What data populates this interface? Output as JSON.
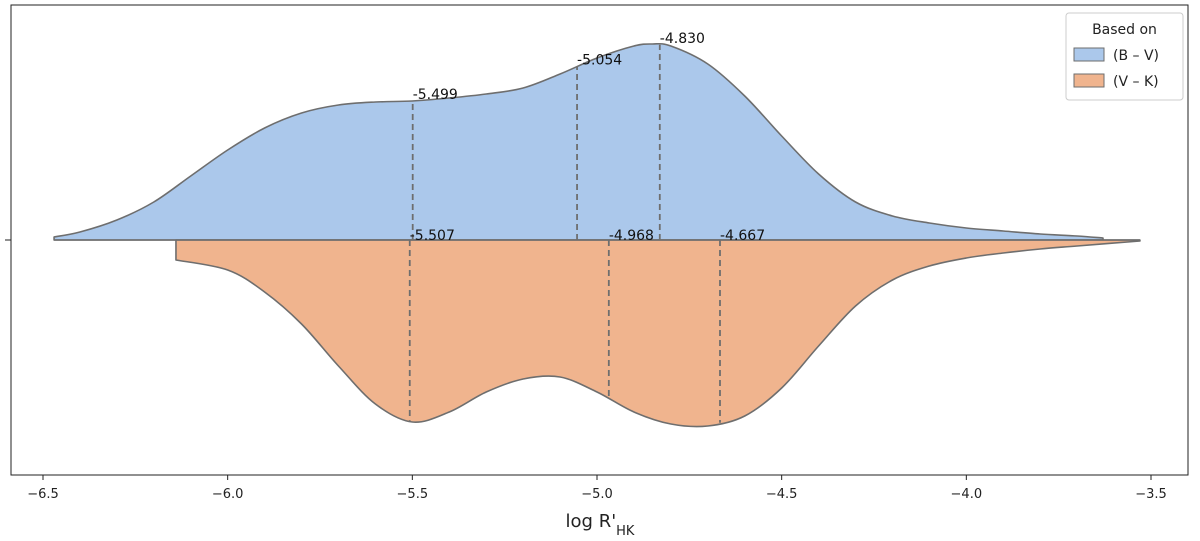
{
  "chart_data": {
    "type": "violin",
    "orientation": "horizontal",
    "split": true,
    "xlabel": "log R'HK",
    "xlim": [
      -6.55,
      -3.48
    ],
    "xticks": [
      -6.5,
      -6.0,
      -5.5,
      -5.0,
      -4.5,
      -4.0,
      -3.5
    ],
    "xtick_labels": [
      "−6.5",
      "−6.0",
      "−5.5",
      "−5.0",
      "−4.5",
      "−4.0",
      "−3.5"
    ],
    "legend": {
      "title": "Based on",
      "placement": "top-right"
    },
    "series": [
      {
        "name": "(B – V)",
        "color": "#abc8eb",
        "side": "upper",
        "range": [
          -6.47,
          -3.63
        ],
        "quartiles": [
          -5.499,
          -5.054,
          -4.83
        ],
        "quartile_labels": [
          "-5.499",
          "-5.054",
          "-4.830"
        ],
        "density_curve": [
          [
            -6.47,
            0.015
          ],
          [
            -6.4,
            0.04
          ],
          [
            -6.3,
            0.1
          ],
          [
            -6.2,
            0.19
          ],
          [
            -6.1,
            0.32
          ],
          [
            -6.0,
            0.45
          ],
          [
            -5.9,
            0.56
          ],
          [
            -5.8,
            0.635
          ],
          [
            -5.7,
            0.675
          ],
          [
            -5.6,
            0.69
          ],
          [
            -5.5,
            0.695
          ],
          [
            -5.4,
            0.71
          ],
          [
            -5.3,
            0.73
          ],
          [
            -5.2,
            0.76
          ],
          [
            -5.1,
            0.83
          ],
          [
            -5.0,
            0.91
          ],
          [
            -4.9,
            0.97
          ],
          [
            -4.85,
            0.98
          ],
          [
            -4.8,
            0.97
          ],
          [
            -4.7,
            0.88
          ],
          [
            -4.6,
            0.72
          ],
          [
            -4.5,
            0.52
          ],
          [
            -4.4,
            0.33
          ],
          [
            -4.3,
            0.19
          ],
          [
            -4.2,
            0.12
          ],
          [
            -4.1,
            0.085
          ],
          [
            -4.0,
            0.06
          ],
          [
            -3.9,
            0.045
          ],
          [
            -3.8,
            0.03
          ],
          [
            -3.7,
            0.02
          ],
          [
            -3.63,
            0.01
          ]
        ]
      },
      {
        "name": "(V – K)",
        "color": "#f0b48e",
        "side": "lower",
        "range": [
          -6.14,
          -3.53
        ],
        "quartiles": [
          -5.507,
          -4.968,
          -4.667
        ],
        "quartile_labels": [
          "-5.507",
          "-4.968",
          "-4.667"
        ],
        "density_curve": [
          [
            -6.14,
            0.1
          ],
          [
            -6.0,
            0.15
          ],
          [
            -5.9,
            0.26
          ],
          [
            -5.8,
            0.42
          ],
          [
            -5.7,
            0.63
          ],
          [
            -5.6,
            0.82
          ],
          [
            -5.5,
            0.91
          ],
          [
            -5.4,
            0.86
          ],
          [
            -5.3,
            0.76
          ],
          [
            -5.2,
            0.695
          ],
          [
            -5.1,
            0.685
          ],
          [
            -5.0,
            0.76
          ],
          [
            -4.9,
            0.86
          ],
          [
            -4.8,
            0.92
          ],
          [
            -4.7,
            0.93
          ],
          [
            -4.6,
            0.88
          ],
          [
            -4.5,
            0.74
          ],
          [
            -4.4,
            0.53
          ],
          [
            -4.3,
            0.33
          ],
          [
            -4.2,
            0.2
          ],
          [
            -4.1,
            0.13
          ],
          [
            -4.0,
            0.09
          ],
          [
            -3.9,
            0.065
          ],
          [
            -3.8,
            0.045
          ],
          [
            -3.7,
            0.03
          ],
          [
            -3.53,
            0.005
          ]
        ]
      }
    ]
  }
}
